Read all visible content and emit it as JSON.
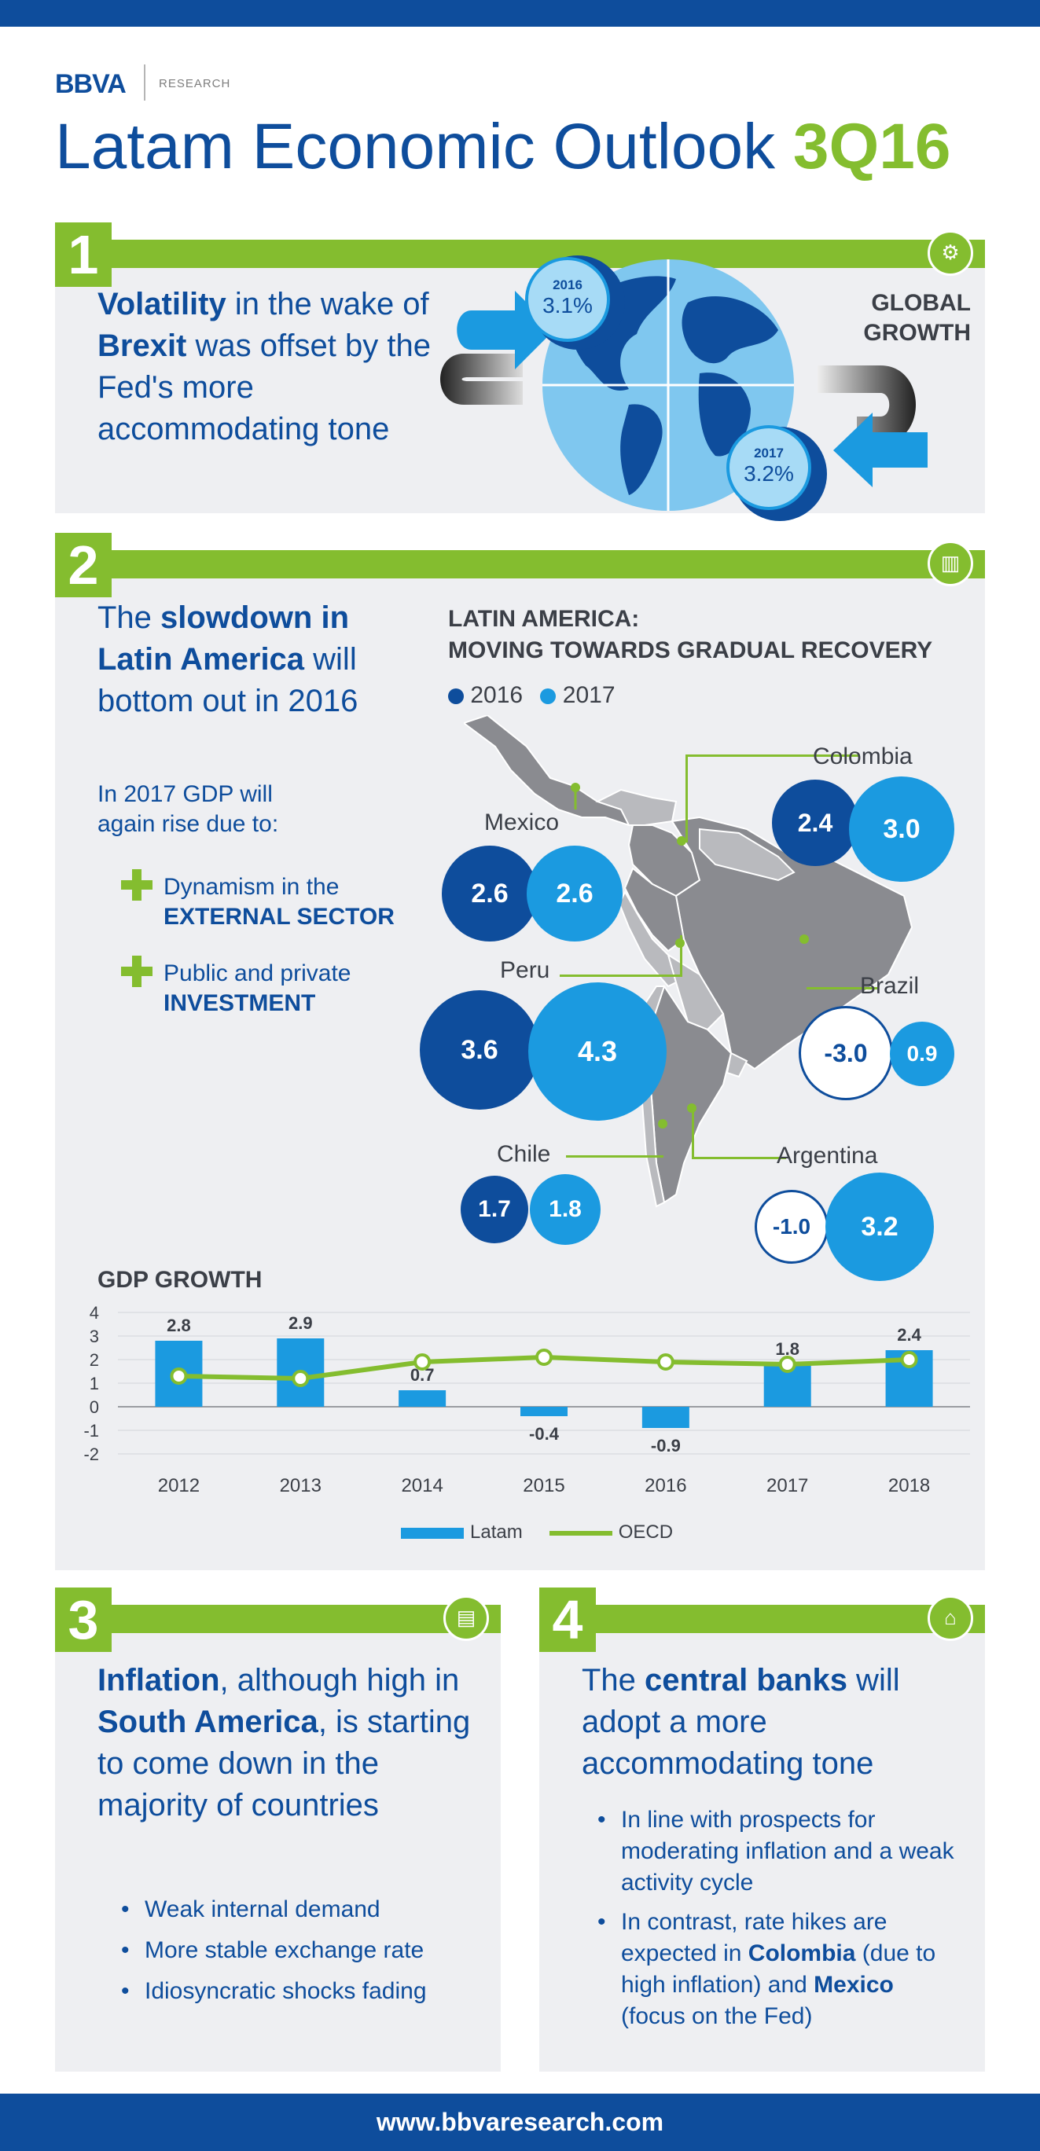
{
  "header": {
    "logo": "BBVA",
    "logo_sub": "RESEARCH",
    "title_main": "Latam Economic Outlook ",
    "title_accent": "3Q16"
  },
  "section1": {
    "number": "1",
    "text_parts": [
      "Volatility",
      " in the wake of ",
      "Brexit",
      " was offset by the Fed's more accommodating tone"
    ],
    "label_line1": "GLOBAL",
    "label_line2": "GROWTH",
    "coin_2016_year": "2016",
    "coin_2016_value": "3.1%",
    "coin_2017_year": "2017",
    "coin_2017_value": "3.2%"
  },
  "section2": {
    "number": "2",
    "lead_parts": [
      "The ",
      "slowdown in Latin America",
      " will bottom out in 2016"
    ],
    "sub": "In 2017 GDP will again rise due to:",
    "plus1_line1": "Dynamism in the",
    "plus1_line2": "EXTERNAL SECTOR",
    "plus2_line1": "Public and private",
    "plus2_line2": "INVESTMENT",
    "map_title_1": "LATIN AMERICA:",
    "map_title_2": "MOVING TOWARDS GRADUAL RECOVERY",
    "legend_2016": "2016",
    "legend_2017": "2017",
    "countries": {
      "mexico": {
        "name": "Mexico",
        "v2016": "2.6",
        "v2017": "2.6"
      },
      "colombia": {
        "name": "Colombia",
        "v2016": "2.4",
        "v2017": "3.0"
      },
      "peru": {
        "name": "Peru",
        "v2016": "3.6",
        "v2017": "4.3"
      },
      "brazil": {
        "name": "Brazil",
        "v2016": "-3.0",
        "v2017": "0.9"
      },
      "chile": {
        "name": "Chile",
        "v2016": "1.7",
        "v2017": "1.8"
      },
      "argentina": {
        "name": "Argentina",
        "v2016": "-1.0",
        "v2017": "3.2"
      }
    }
  },
  "chart_data": {
    "type": "bar",
    "title": "GDP GROWTH",
    "categories": [
      "2012",
      "2013",
      "2014",
      "2015",
      "2016",
      "2017",
      "2018"
    ],
    "series": [
      {
        "name": "Latam",
        "type": "bar",
        "values": [
          2.8,
          2.9,
          0.7,
          -0.4,
          -0.9,
          1.8,
          2.4
        ]
      },
      {
        "name": "OECD",
        "type": "line",
        "values": [
          1.3,
          1.2,
          1.9,
          2.1,
          1.9,
          1.8,
          2.0
        ]
      }
    ],
    "data_labels": [
      "2.8",
      "2.9",
      "0.7",
      "-0.4",
      "-0.9",
      "1.8",
      "2.4"
    ],
    "yticks": [
      "4",
      "3",
      "2",
      "1",
      "0",
      "-1",
      "-2"
    ],
    "ylim": [
      -2,
      4
    ],
    "legend_position": "bottom",
    "colors": {
      "Latam": "#1b9ae0",
      "OECD": "#84bd2f"
    }
  },
  "section3": {
    "number": "3",
    "lead_parts": [
      "Inflation",
      ", although high in ",
      "South America",
      ", is starting to come down in the majority of countries"
    ],
    "bullets": [
      "Weak internal demand",
      "More stable exchange rate",
      "Idiosyncratic shocks fading"
    ]
  },
  "section4": {
    "number": "4",
    "lead_parts": [
      "The ",
      "central banks",
      " will adopt a more accommodating tone"
    ],
    "bullet1": "In line with prospects for moderating inflation and a weak activity cycle",
    "bullet2_parts": [
      "In contrast, rate hikes are expected in ",
      "Colombia",
      " (due to high inflation) and ",
      "Mexico",
      " (focus on the Fed)"
    ]
  },
  "footer": {
    "url": "www.bbvaresearch.com"
  },
  "colors": {
    "brand_blue": "#0e4d9c",
    "light_blue": "#1b9ae0",
    "green": "#84bd2f",
    "panel": "#eeeff2"
  }
}
